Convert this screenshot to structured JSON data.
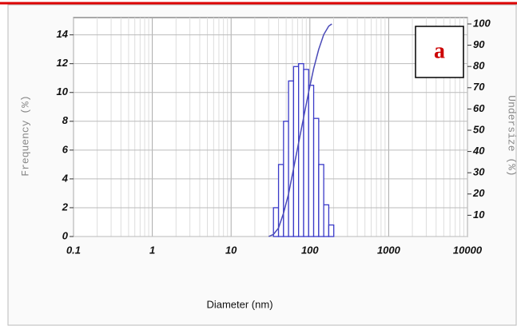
{
  "chart_data": {
    "type": "histogram",
    "panel_label": "a",
    "xlabel": "Diameter (nm)",
    "ylabel": "Frequency (%)",
    "y2label": "Undersize (%)",
    "xscale": "log",
    "xlim": [
      0.1,
      10000
    ],
    "xticks": [
      0.1,
      1,
      10,
      100,
      1000,
      10000
    ],
    "ylim": [
      0,
      15.2
    ],
    "yticks": [
      0,
      2,
      4,
      6,
      8,
      10,
      12,
      14
    ],
    "y2lim": [
      0,
      103
    ],
    "y2ticks": [
      10,
      20,
      30,
      40,
      50,
      60,
      70,
      80,
      90,
      100
    ],
    "grid": true,
    "bins": [
      34.5,
      40,
      46.3,
      53.6,
      62.1,
      71.9,
      83.3,
      96.5,
      111.7,
      129.4,
      149.9,
      173.6,
      201
    ],
    "counts": [
      2,
      5,
      8,
      10.8,
      11.8,
      12,
      11.6,
      10.5,
      8.2,
      5,
      2.2,
      0.8
    ],
    "color": "#3a3ac8",
    "cumulative": {
      "axis": "y2",
      "color": "#4a4ab8",
      "x": [
        30,
        34.5,
        40,
        46.3,
        53.6,
        62.1,
        71.9,
        83.3,
        96.5,
        111.7,
        129.4,
        149.9,
        173.6,
        190
      ],
      "values": [
        0,
        1,
        4,
        11,
        20,
        32,
        44,
        56,
        68,
        79,
        88,
        95,
        99,
        100
      ]
    }
  }
}
